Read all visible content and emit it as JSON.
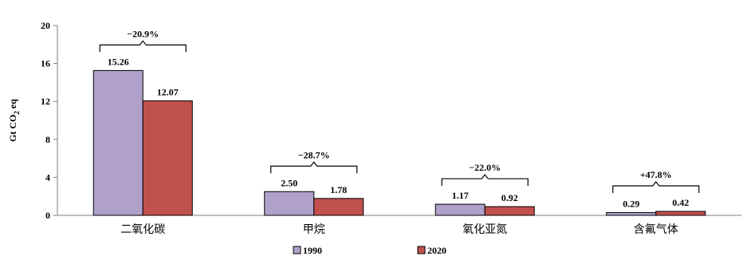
{
  "chart_data": {
    "type": "bar",
    "ylabel_main": "Gt CO",
    "ylabel_sub": "2",
    "ylabel_tail": " eq",
    "ylim": [
      0,
      20
    ],
    "yticks": [
      "0",
      "4",
      "8",
      "12",
      "16",
      "20"
    ],
    "categories": [
      "二氧化碳",
      "甲烷",
      "氧化亚氮",
      "含氟气体"
    ],
    "series": [
      {
        "name": "1990",
        "values": [
          15.26,
          2.5,
          1.17,
          0.29
        ],
        "labels": [
          "15.26",
          "2.50",
          "1.17",
          "0.29"
        ],
        "color": "#b0a1cb"
      },
      {
        "name": "2020",
        "values": [
          12.07,
          1.78,
          0.92,
          0.42
        ],
        "labels": [
          "12.07",
          "1.78",
          "0.92",
          "0.42"
        ],
        "color": "#c0504d"
      }
    ],
    "changes": [
      "−20.9%",
      "−28.7%",
      "−22.0%",
      "+47.8%"
    ],
    "legend_position": "bottom",
    "grid": false
  }
}
